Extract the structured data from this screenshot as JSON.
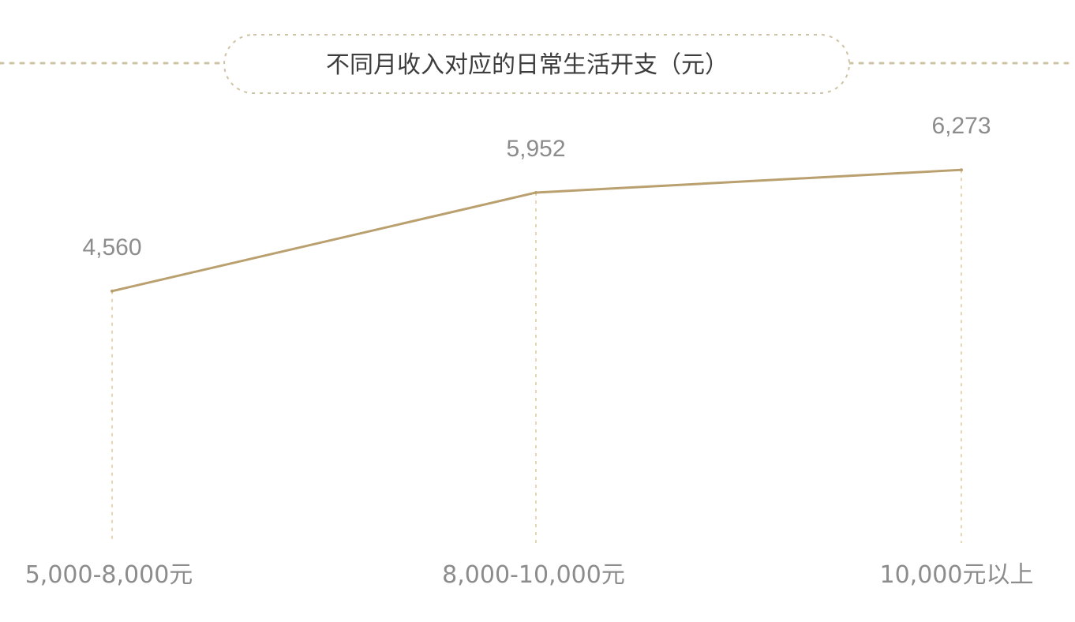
{
  "title": "不同月收入对应的日常生活开支（元）",
  "colors": {
    "line": "#b9a06e",
    "frame": "#cfc3a6",
    "guide": "#e6d7b0",
    "label": "#8c8c8c",
    "title": "#3d3d3d"
  },
  "chart_data": {
    "type": "line",
    "title": "不同月收入对应的日常生活开支（元）",
    "categories": [
      "5,000-8,000元",
      "8,000-10,000元",
      "10,000元以上"
    ],
    "values": [
      4560,
      5952,
      6273
    ],
    "value_labels": [
      "4,560",
      "5,952",
      "6,273"
    ],
    "xlabel": "",
    "ylabel": "",
    "ylim": [
      1000,
      7000
    ],
    "grid": false,
    "legend": "none"
  }
}
